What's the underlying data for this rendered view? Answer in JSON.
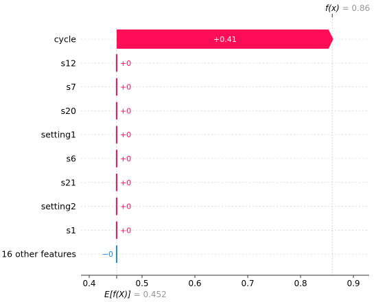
{
  "chart_data": {
    "type": "waterfall",
    "base_value": 0.452,
    "base_value_text": "0.452",
    "base_label_prefix": "E[f(X)]",
    "output_value": 0.86,
    "output_value_text": "0.86",
    "output_label_prefix": "f(x)",
    "xlim": [
      0.37,
      0.93
    ],
    "xticks": [
      0.4,
      0.5,
      0.6,
      0.7,
      0.8,
      0.9
    ],
    "xtick_labels": [
      "0.4",
      "0.5",
      "0.6",
      "0.7",
      "0.8",
      "0.9"
    ],
    "features": [
      {
        "name": "cycle",
        "value": 0.41,
        "label": "+0.41"
      },
      {
        "name": "s12",
        "value": 0.0,
        "label": "+0"
      },
      {
        "name": "s7",
        "value": 0.0,
        "label": "+0"
      },
      {
        "name": "s20",
        "value": 0.0,
        "label": "+0"
      },
      {
        "name": "setting1",
        "value": 0.0,
        "label": "+0"
      },
      {
        "name": "s6",
        "value": 0.0,
        "label": "+0"
      },
      {
        "name": "s21",
        "value": 0.0,
        "label": "+0"
      },
      {
        "name": "setting2",
        "value": 0.0,
        "label": "+0"
      },
      {
        "name": "s1",
        "value": 0.0,
        "label": "+0"
      },
      {
        "name": "16 other features",
        "value": -0.0,
        "label": "−0"
      }
    ],
    "colors": {
      "positive": "#ff0d57",
      "negative": "#1e88e5",
      "axis": "#333333",
      "muted": "#999999",
      "grid": "#cccccc"
    }
  }
}
